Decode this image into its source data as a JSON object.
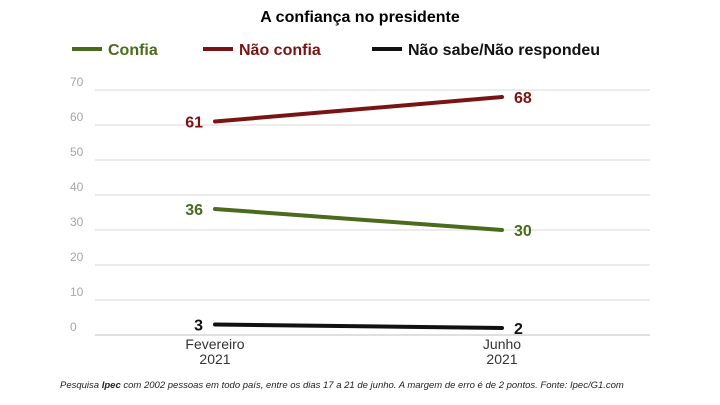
{
  "chart_data": {
    "type": "line",
    "title": "A confiança no presidente",
    "categories": [
      "Fevereiro 2021",
      "Junho 2021"
    ],
    "category_lines": [
      [
        "Fevereiro",
        "2021"
      ],
      [
        "Junho",
        "2021"
      ]
    ],
    "ylim": [
      0,
      70
    ],
    "yticks": [
      0,
      10,
      20,
      30,
      40,
      50,
      60,
      70
    ],
    "grid": true,
    "legend_position": "top",
    "series": [
      {
        "name": "Confia",
        "values": [
          36,
          30
        ],
        "color": "#4a6a1c"
      },
      {
        "name": "Não confia",
        "values": [
          61,
          68
        ],
        "color": "#7a1414"
      },
      {
        "name": "Não sabe/Não respondeu",
        "values": [
          3,
          2
        ],
        "color": "#111111"
      }
    ]
  },
  "footnote": {
    "prefix": "Pesquisa ",
    "brand": "Ipec",
    "rest": " com 2002 pessoas em todo país, entre os dias 17 a 21 de junho. A margem de erro é de 2 pontos. Fonte: Ipec/G1.com"
  }
}
